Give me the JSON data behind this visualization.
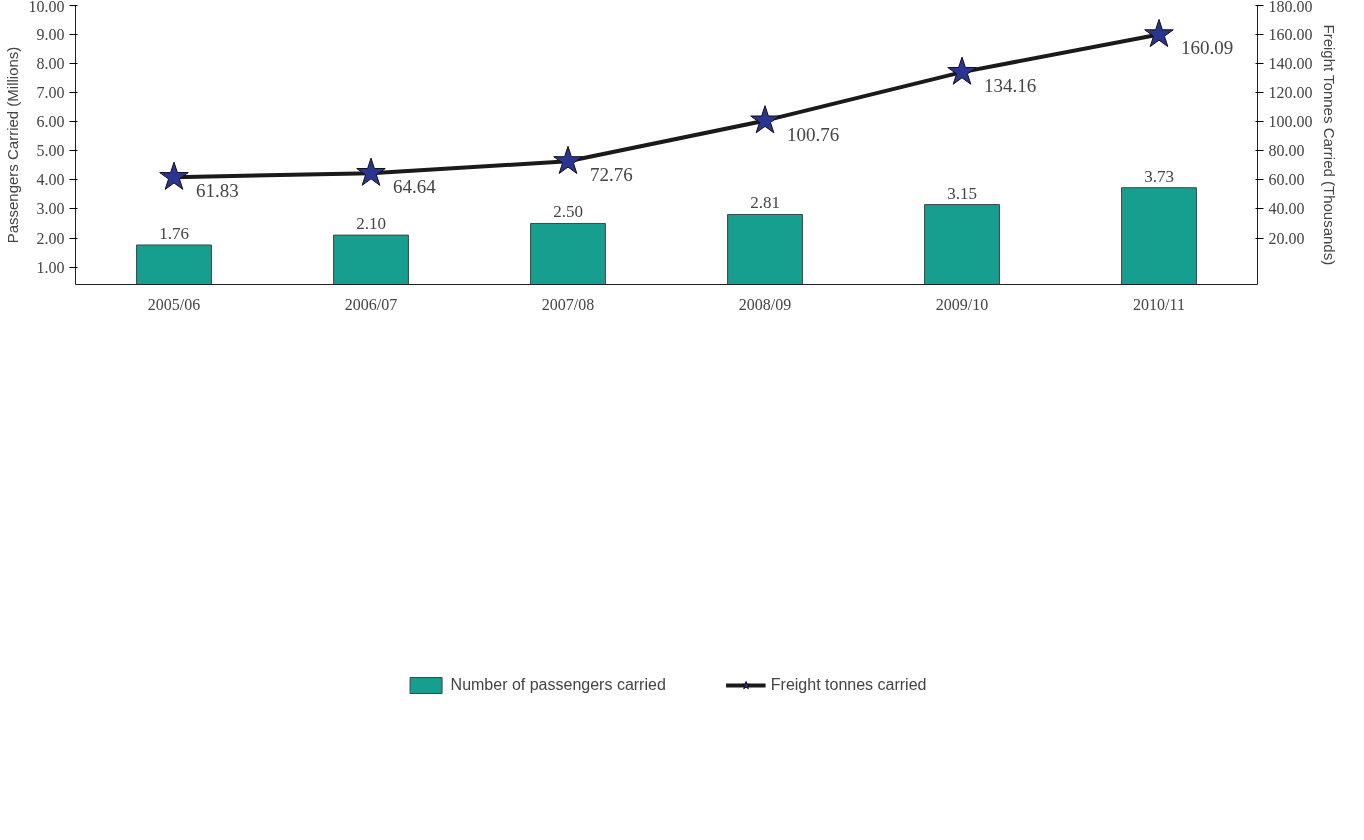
{
  "chart_data": {
    "type": "bar",
    "categories": [
      "2005/06",
      "2006/07",
      "2007/08",
      "2008/09",
      "2009/10",
      "2010/11"
    ],
    "ylabel": "Passengers Carried (Millions)",
    "y2label": "Freight Tonnes Carried (Thousands)",
    "ylim": [
      0.4,
      10
    ],
    "yticks": [
      {
        "value": 1,
        "label": "1.00"
      },
      {
        "value": 2,
        "label": "2.00"
      },
      {
        "value": 3,
        "label": "3.00"
      },
      {
        "value": 4,
        "label": "4.00"
      },
      {
        "value": 5,
        "label": "5.00"
      },
      {
        "value": 6,
        "label": "6.00"
      },
      {
        "value": 7,
        "label": "7.00"
      },
      {
        "value": 8,
        "label": "8.00"
      },
      {
        "value": 9,
        "label": "9.00"
      },
      {
        "value": 10,
        "label": "10.00"
      }
    ],
    "y2lim": [
      -12,
      180
    ],
    "y2ticks": [
      {
        "value": 20,
        "label": "20.00"
      },
      {
        "value": 40,
        "label": "40.00"
      },
      {
        "value": 60,
        "label": "60.00"
      },
      {
        "value": 80,
        "label": "80.00"
      },
      {
        "value": 100,
        "label": "100.00"
      },
      {
        "value": 120,
        "label": "120.00"
      },
      {
        "value": 140,
        "label": "140.00"
      },
      {
        "value": 160,
        "label": "160.00"
      },
      {
        "value": 180,
        "label": "180.00"
      }
    ],
    "series": [
      {
        "name": "Number of passengers carried",
        "color": "#169e8e",
        "values": [
          1.76,
          2.1,
          2.5,
          2.81,
          3.15,
          3.73
        ],
        "value_labels": [
          "1.76",
          "2.10",
          "2.50",
          "2.81",
          "3.15",
          "3.73"
        ]
      },
      {
        "name": "Freight tonnes carried",
        "type": "line",
        "axis": "y2",
        "color": "#2a3590",
        "values": [
          61.83,
          64.64,
          72.76,
          100.76,
          134.16,
          160.09
        ],
        "value_labels": [
          "61.83",
          "64.64",
          "72.76",
          "100.76",
          "134.16",
          "160.09"
        ],
        "marker": "star",
        "line_style": "solid"
      }
    ],
    "grid": false,
    "legend": "bottom"
  }
}
